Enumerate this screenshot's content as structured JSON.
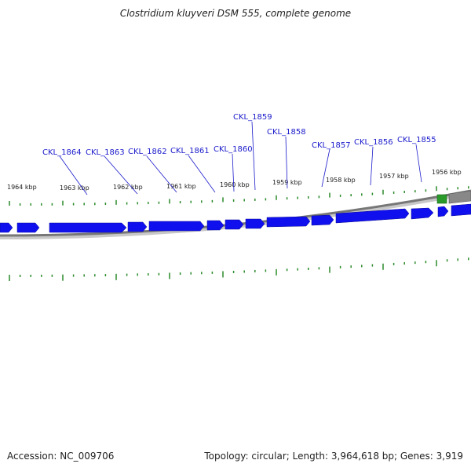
{
  "title": "Clostridium kluyveri DSM 555, complete genome",
  "footer": {
    "accession": "Accession: NC_009706",
    "summary": "Topology: circular; Length: 3,964,618 bp; Genes: 3,919"
  },
  "colors": {
    "gene": "#1010ee",
    "gene_selected": "#2a9a2a",
    "tick": "#2a8a2a",
    "label": "#1a1acc",
    "backbone": "#888888"
  },
  "ruler_labels": [
    "1964 kbp",
    "1963 kbp",
    "1962 kbp",
    "1961 kbp",
    "1960 kbp",
    "1959 kbp",
    "1958 kbp",
    "1957 kbp",
    "1956 kbp"
  ],
  "gene_labels": [
    "CKL_1864",
    "CKL_1863",
    "CKL_1862",
    "CKL_1861",
    "CKL_1860",
    "CKL_1859",
    "CKL_1858",
    "CKL_1857",
    "CKL_1856",
    "CKL_1855"
  ]
}
